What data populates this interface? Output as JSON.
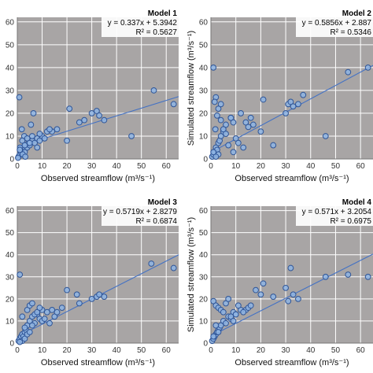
{
  "chart_data": [
    {
      "type": "scatter",
      "title": "Model 1",
      "equation": "y = 0.337x + 5.3942",
      "r2": "R² = 0.5627",
      "xlabel": "Observed streamflow (m³/s⁻¹)",
      "ylabel": "",
      "xlim": [
        0,
        65
      ],
      "ylim": [
        0,
        62
      ],
      "xticks": [
        "0",
        "10",
        "20",
        "30",
        "40",
        "50",
        "60"
      ],
      "yticks": [
        "0",
        "10",
        "20",
        "30",
        "40",
        "50",
        "60"
      ],
      "grid": true,
      "trendline": {
        "slope": 0.337,
        "intercept": 5.3942
      },
      "x": [
        0.5,
        1,
        1.5,
        2,
        2.5,
        3,
        3.5,
        4,
        5,
        6,
        7,
        8,
        9,
        10,
        12,
        0.8,
        1.2,
        2.2,
        3.2,
        4.5,
        5.5,
        6.5,
        1.8,
        2.8,
        0.3,
        1.1,
        14,
        16,
        20,
        21,
        25,
        27,
        30,
        32,
        33,
        35,
        46,
        55,
        63,
        8,
        9,
        11,
        13,
        2,
        3,
        4,
        1,
        5,
        6
      ],
      "y": [
        1,
        2,
        3,
        4,
        5,
        3,
        6,
        5,
        6,
        8,
        7,
        9,
        8,
        10,
        12,
        27,
        4,
        2,
        1,
        7,
        15,
        20,
        13,
        10,
        0.5,
        5,
        12,
        13,
        8,
        22,
        16,
        17,
        20,
        21,
        19,
        17,
        10,
        30,
        24,
        5,
        11,
        9,
        13,
        8,
        6,
        9,
        4,
        7,
        10
      ]
    },
    {
      "type": "scatter",
      "title": "Model 2",
      "equation": "y = 0.5856x + 2.887",
      "r2": "R² = 0.5346",
      "xlabel": "Observed streamflow (m³/s⁻¹)",
      "ylabel": "Simulated streamflow (m³/s⁻¹)",
      "xlim": [
        0,
        65
      ],
      "ylim": [
        0,
        62
      ],
      "xticks": [
        "0",
        "10",
        "20",
        "30",
        "40",
        "50",
        "60"
      ],
      "yticks": [
        "0",
        "10",
        "20",
        "30",
        "40",
        "50",
        "60"
      ],
      "grid": true,
      "trendline": {
        "slope": 0.5856,
        "intercept": 2.887
      },
      "x": [
        0.5,
        1,
        1.5,
        2,
        2.5,
        3,
        3.5,
        4,
        5,
        6,
        7,
        8,
        9,
        10,
        12,
        1,
        2,
        3,
        4,
        5,
        6,
        1.5,
        2.5,
        14,
        15,
        16,
        17,
        20,
        21,
        25,
        30,
        31,
        32,
        33,
        35,
        37,
        46,
        55,
        63,
        9,
        11,
        13,
        8,
        3,
        2,
        1,
        4,
        1.8
      ],
      "y": [
        1,
        2,
        3,
        5,
        4,
        7,
        8,
        10,
        12,
        15,
        6,
        18,
        16,
        9,
        20,
        40,
        27,
        22,
        17,
        13,
        11,
        25,
        19,
        16,
        14,
        18,
        15,
        12,
        26,
        6,
        20,
        24,
        25,
        23,
        24,
        28,
        10,
        38,
        40,
        3,
        7,
        5,
        18,
        2,
        1,
        3,
        24,
        13
      ]
    },
    {
      "type": "scatter",
      "title": "Model 3",
      "equation": "y = 0.5719x + 2.8279",
      "r2": "R² = 0.6874",
      "xlabel": "Observed streamflow (m³/s⁻¹)",
      "ylabel": "",
      "xlim": [
        0,
        65
      ],
      "ylim": [
        0,
        62
      ],
      "xticks": [
        "0",
        "10",
        "20",
        "30",
        "40",
        "50",
        "60"
      ],
      "yticks": [
        "0",
        "10",
        "20",
        "30",
        "40",
        "50",
        "60"
      ],
      "grid": true,
      "trendline": {
        "slope": 0.5719,
        "intercept": 2.8279
      },
      "x": [
        0.5,
        1,
        1.5,
        2,
        2.5,
        3,
        3.5,
        4,
        5,
        6,
        7,
        8,
        9,
        10,
        12,
        1,
        2,
        3,
        4,
        5,
        6,
        7,
        8,
        14,
        15,
        16,
        18,
        20,
        24,
        25,
        30,
        32,
        33,
        35,
        54,
        63,
        10,
        11,
        13,
        2,
        3,
        4,
        1,
        5,
        6,
        9
      ],
      "y": [
        1,
        2,
        3,
        4,
        3,
        5,
        6,
        8,
        10,
        12,
        9,
        13,
        11,
        15,
        14,
        31,
        12,
        7,
        15,
        17,
        18,
        13,
        14,
        15,
        12,
        14,
        16,
        24,
        22,
        18,
        20,
        21,
        22,
        21,
        36,
        34,
        10,
        11,
        9,
        1,
        2,
        4,
        0.5,
        5,
        8,
        16
      ]
    },
    {
      "type": "scatter",
      "title": "Model 4",
      "equation": "y = 0.571x + 3.2054",
      "r2": "R² = 0.6975",
      "xlabel": "Observed streamflow (m³/s⁻¹)",
      "ylabel": "Simulated streamflow (m³/s⁻¹)",
      "xlim": [
        0,
        65
      ],
      "ylim": [
        0,
        62
      ],
      "xticks": [
        "0",
        "10",
        "20",
        "30",
        "40",
        "50",
        "60"
      ],
      "yticks": [
        "0",
        "10",
        "20",
        "30",
        "40",
        "50",
        "60"
      ],
      "grid": true,
      "trendline": {
        "slope": 0.571,
        "intercept": 3.2054
      },
      "x": [
        0.5,
        1,
        1.5,
        2,
        2.5,
        3,
        3.5,
        4,
        5,
        6,
        7,
        8,
        9,
        10,
        12,
        1,
        2,
        3,
        4,
        5,
        6,
        7,
        8,
        9,
        14,
        15,
        16,
        18,
        20,
        21,
        25,
        30,
        31,
        32,
        33,
        35,
        46,
        55,
        63,
        10,
        11,
        13,
        2,
        3,
        1
      ],
      "y": [
        1,
        2,
        3,
        4,
        5,
        6,
        7,
        8,
        10,
        9,
        12,
        11,
        14,
        13,
        15,
        19,
        17,
        16,
        15,
        14,
        18,
        20,
        12,
        10,
        15,
        16,
        17,
        24,
        22,
        27,
        21,
        25,
        19,
        34,
        22,
        20,
        30,
        31,
        30,
        13,
        17,
        14,
        8,
        5,
        3
      ]
    }
  ]
}
